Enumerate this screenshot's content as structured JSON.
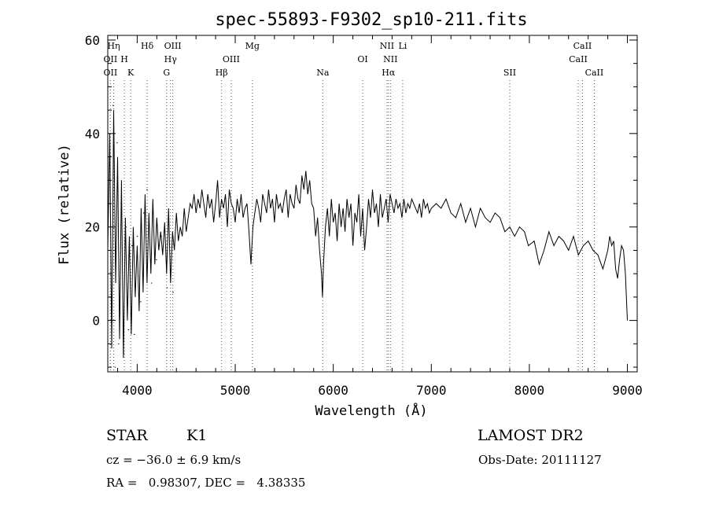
{
  "chart_data": {
    "type": "line",
    "title": "spec-55893-F9302_sp10-211.fits",
    "xlabel": "Wavelength (Å)",
    "ylabel": "Flux (relative)",
    "xlim": [
      3700,
      9100
    ],
    "ylim": [
      -11,
      61
    ],
    "x_ticks": [
      4000,
      5000,
      6000,
      7000,
      8000,
      9000
    ],
    "y_ticks": [
      0,
      20,
      40,
      60
    ],
    "grid": false,
    "line_color": "#000000",
    "marker_color": "#000000",
    "series": [
      {
        "x": [
          3700,
          3720,
          3740,
          3760,
          3780,
          3800,
          3820,
          3840,
          3860,
          3880,
          3900,
          3920,
          3940,
          3960,
          3980,
          4000,
          4020,
          4040,
          4060,
          4080,
          4100,
          4120,
          4140,
          4160,
          4180,
          4200,
          4220,
          4240,
          4260,
          4280,
          4300,
          4320,
          4340,
          4360,
          4380,
          4400,
          4420,
          4440,
          4460,
          4480,
          4500,
          4520,
          4540,
          4560,
          4580,
          4600,
          4620,
          4640,
          4660,
          4680,
          4700,
          4720,
          4740,
          4760,
          4780,
          4800,
          4820,
          4840,
          4860,
          4880,
          4900,
          4920,
          4940,
          4960,
          4980,
          5000,
          5020,
          5040,
          5060,
          5080,
          5100,
          5120,
          5140,
          5160,
          5180,
          5200,
          5220,
          5240,
          5260,
          5280,
          5300,
          5320,
          5340,
          5360,
          5380,
          5400,
          5420,
          5440,
          5460,
          5480,
          5500,
          5520,
          5540,
          5560,
          5580,
          5600,
          5620,
          5640,
          5660,
          5680,
          5700,
          5720,
          5740,
          5760,
          5780,
          5800,
          5820,
          5840,
          5860,
          5880,
          5890,
          5900,
          5920,
          5940,
          5960,
          5980,
          6000,
          6020,
          6040,
          6060,
          6080,
          6100,
          6120,
          6140,
          6160,
          6180,
          6200,
          6220,
          6240,
          6260,
          6280,
          6300,
          6320,
          6340,
          6360,
          6380,
          6400,
          6420,
          6440,
          6460,
          6480,
          6500,
          6520,
          6540,
          6560,
          6580,
          6600,
          6620,
          6640,
          6660,
          6680,
          6700,
          6720,
          6740,
          6760,
          6780,
          6800,
          6820,
          6840,
          6860,
          6880,
          6900,
          6920,
          6940,
          6960,
          6980,
          7000,
          7050,
          7100,
          7150,
          7200,
          7250,
          7300,
          7350,
          7400,
          7450,
          7500,
          7550,
          7600,
          7650,
          7700,
          7750,
          7800,
          7850,
          7900,
          7950,
          7990,
          8050,
          8100,
          8150,
          8200,
          8250,
          8300,
          8350,
          8400,
          8450,
          8500,
          8550,
          8600,
          8650,
          8700,
          8750,
          8800,
          8820,
          8840,
          8860,
          8880,
          8900,
          8920,
          8940,
          8960,
          8980,
          9000
        ],
        "y": [
          15,
          40,
          -6,
          45,
          8,
          35,
          -4,
          30,
          -8,
          22,
          0,
          18,
          -3,
          20,
          5,
          16,
          2,
          24,
          6,
          27,
          8,
          23,
          10,
          26,
          12,
          22,
          15,
          19,
          14,
          21,
          10,
          24,
          8,
          19,
          15,
          23,
          17,
          20,
          18,
          24,
          19,
          22,
          25,
          24,
          27,
          23,
          26,
          24,
          28,
          25,
          22,
          27,
          24,
          26,
          21,
          25,
          30,
          22,
          26,
          24,
          27,
          20,
          28,
          25,
          24,
          21,
          26,
          23,
          27,
          22,
          24,
          25,
          19,
          12,
          20,
          23,
          26,
          24,
          21,
          27,
          25,
          23,
          28,
          24,
          26,
          21,
          27,
          24,
          25,
          23,
          26,
          28,
          22,
          27,
          25,
          24,
          29,
          26,
          25,
          31,
          28,
          32,
          27,
          30,
          25,
          24,
          18,
          22,
          15,
          10,
          5,
          12,
          20,
          24,
          18,
          26,
          21,
          23,
          17,
          25,
          20,
          24,
          19,
          26,
          22,
          25,
          16,
          23,
          21,
          27,
          18,
          24,
          15,
          20,
          26,
          22,
          28,
          23,
          25,
          20,
          27,
          22,
          24,
          26,
          21,
          27,
          25,
          23,
          26,
          24,
          25,
          22,
          26,
          23,
          25,
          24,
          26,
          25,
          24,
          23,
          25,
          22,
          26,
          24,
          25,
          23,
          24,
          25,
          24,
          26,
          23,
          22,
          25,
          21,
          24,
          20,
          24,
          22,
          21,
          23,
          22,
          19,
          20,
          18,
          20,
          19,
          16,
          17,
          12,
          15,
          19,
          16,
          18,
          17,
          15,
          18,
          14,
          16,
          17,
          15,
          14,
          11,
          15,
          18,
          16,
          17,
          11,
          9,
          13,
          16,
          15,
          10,
          0
        ],
        "mark_points": [
          {
            "x": 3748,
            "y": 46
          },
          {
            "x": 3760,
            "y": 15
          },
          {
            "x": 3770,
            "y": -10
          },
          {
            "x": 3790,
            "y": 38
          },
          {
            "x": 3805,
            "y": -5
          },
          {
            "x": 3830,
            "y": 25
          },
          {
            "x": 3855,
            "y": -7
          },
          {
            "x": 3880,
            "y": 20
          },
          {
            "x": 3905,
            "y": -2
          },
          {
            "x": 3940,
            "y": 16
          },
          {
            "x": 3965,
            "y": -3
          },
          {
            "x": 3995,
            "y": 18
          },
          {
            "x": 4030,
            "y": 4
          },
          {
            "x": 4060,
            "y": 23
          },
          {
            "x": 4095,
            "y": 28
          },
          {
            "x": 4140,
            "y": 8
          },
          {
            "x": 4190,
            "y": 13
          },
          {
            "x": 4240,
            "y": 18
          },
          {
            "x": 4300,
            "y": 7
          },
          {
            "x": 4360,
            "y": 6
          }
        ]
      }
    ],
    "lines": [
      {
        "x": 3727,
        "labels": [
          {
            "text": "OII",
            "row": 1
          },
          {
            "text": "OII",
            "row": 2
          }
        ]
      },
      {
        "x": 3760,
        "labels": [
          {
            "text": "Hη",
            "row": 0
          }
        ]
      },
      {
        "x": 3869,
        "labels": [
          {
            "text": "H",
            "row": 1
          }
        ]
      },
      {
        "x": 3934,
        "labels": [
          {
            "text": "K",
            "row": 2
          }
        ]
      },
      {
        "x": 4102,
        "labels": [
          {
            "text": "Hδ",
            "row": 0
          }
        ]
      },
      {
        "x": 4300,
        "labels": [
          {
            "text": "G",
            "row": 2
          }
        ]
      },
      {
        "x": 4340,
        "labels": [
          {
            "text": "Hγ",
            "row": 1
          }
        ]
      },
      {
        "x": 4363,
        "labels": [
          {
            "text": "OIII",
            "row": 0
          }
        ]
      },
      {
        "x": 4861,
        "labels": [
          {
            "text": "Hβ",
            "row": 2
          }
        ]
      },
      {
        "x": 4959,
        "labels": [
          {
            "text": "OIII",
            "row": 1
          }
        ]
      },
      {
        "x": 5175,
        "labels": [
          {
            "text": "Mg",
            "row": 0
          }
        ]
      },
      {
        "x": 5893,
        "labels": [
          {
            "text": "Na",
            "row": 2
          }
        ]
      },
      {
        "x": 6300,
        "labels": [
          {
            "text": "OI",
            "row": 1
          }
        ]
      },
      {
        "x": 6548,
        "labels": [
          {
            "text": "NII",
            "row": 0
          }
        ]
      },
      {
        "x": 6563,
        "labels": [
          {
            "text": "Hα",
            "row": 2
          }
        ]
      },
      {
        "x": 6583,
        "labels": [
          {
            "text": "NII",
            "row": 1
          }
        ]
      },
      {
        "x": 6708,
        "labels": [
          {
            "text": "Li",
            "row": 0
          }
        ]
      },
      {
        "x": 7800,
        "labels": [
          {
            "text": "SII",
            "row": 2
          }
        ]
      },
      {
        "x": 8498,
        "labels": [
          {
            "text": "CaII",
            "row": 1
          }
        ]
      },
      {
        "x": 8542,
        "labels": [
          {
            "text": "CaII",
            "row": 0
          }
        ]
      },
      {
        "x": 8662,
        "labels": [
          {
            "text": "CaII",
            "row": 2
          }
        ]
      }
    ]
  },
  "info": {
    "object_class": "STAR",
    "subclass": "K1",
    "redshift_line": "cz = −36.0 ± 6.9 km/s",
    "coords_line": "RA =   0.98307, DEC =   4.38335",
    "survey": "LAMOST DR2",
    "obs_date_line": "Obs-Date: 20111127"
  }
}
